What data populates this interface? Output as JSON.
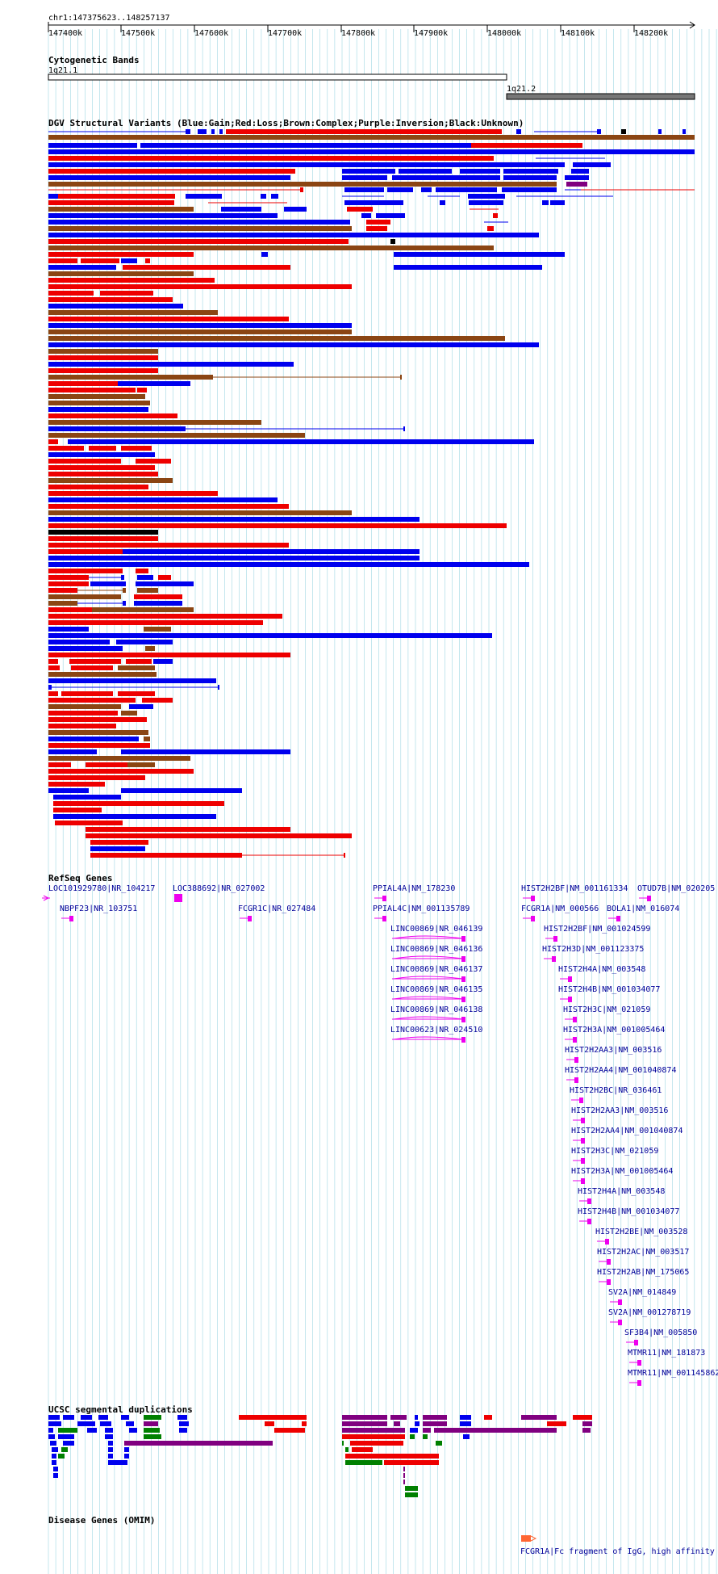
{
  "coordinate_label": "chr1:147375623..148257137",
  "ruler": {
    "ticks": [
      "147400k",
      "147500k",
      "147600k",
      "147700k",
      "147800k",
      "147900k",
      "148000k",
      "148100k",
      "148200k"
    ]
  },
  "tracks": {
    "cytoband": {
      "title": "Cytogenetic Bands",
      "band1": "1q21.1",
      "band2": "1q21.2"
    },
    "dgv": {
      "title": "DGV Structural Variants (Blue:Gain;Red:Loss;Brown:Complex;Purple:Inversion;Black:Unknown)"
    },
    "refseq": {
      "title": "RefSeq Genes",
      "genes": [
        "LOC101929780|NR_104217",
        "LOC388692|NR_027002",
        "PPIAL4A|NM_178230",
        "HIST2H2BF|NM_001161334",
        "OTUD7B|NM_020205",
        "NBPF23|NR_103751",
        "FCGR1C|NR_027484",
        "PPIAL4C|NM_001135789",
        "FCGR1A|NM_000566",
        "BOLA1|NM_016074",
        "LINC00869|NR_046139",
        "HIST2H2BF|NM_001024599",
        "LINC00869|NR_046136",
        "HIST2H3D|NM_001123375",
        "LINC00869|NR_046137",
        "HIST2H4A|NM_003548",
        "LINC00869|NR_046135",
        "HIST2H4B|NM_001034077",
        "LINC00869|NR_046138",
        "HIST2H3C|NM_021059",
        "LINC00623|NR_024510",
        "HIST2H3A|NM_001005464",
        "HIST2H2AA3|NM_003516",
        "HIST2H2AA4|NM_001040874",
        "HIST2H2BC|NR_036461",
        "HIST2H2AA3|NM_003516",
        "HIST2H2AA4|NM_001040874",
        "HIST2H3C|NM_021059",
        "HIST2H3A|NM_001005464",
        "HIST2H4A|NM_003548",
        "HIST2H4B|NM_001034077",
        "HIST2H2BE|NM_003528",
        "HIST2H2AC|NM_003517",
        "HIST2H2AB|NM_175065",
        "SV2A|NM_014849",
        "SV2A|NM_001278719",
        "SF3B4|NM_005850",
        "MTMR11|NM_181873",
        "MTMR11|NM_001145862"
      ]
    },
    "segdup": {
      "title": "UCSC segmental duplications"
    },
    "omim": {
      "title": "Disease Genes (OMIM)",
      "item": "FCGR1A|Fc fragment of IgG, high affinity"
    }
  },
  "colors": {
    "blue": "#0000ee",
    "red": "#ee0000",
    "brown": "#8b4513",
    "purple": "#800080",
    "black": "#000000",
    "green": "#008000",
    "magenta": "#ee00ee",
    "orange": "#ff6633",
    "grid": "#9fd7e3",
    "omim_text": "#000099"
  }
}
